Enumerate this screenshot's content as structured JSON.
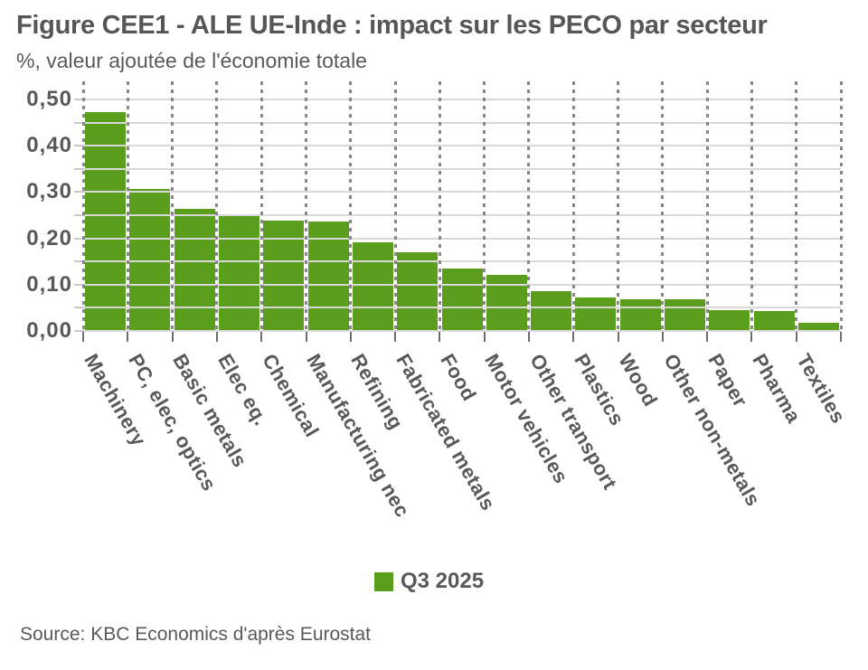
{
  "chart_data": {
    "type": "bar",
    "title": "Figure CEE1 - ALE UE-Inde : impact sur les PECO par secteur",
    "subtitle": "%, valeur ajoutée de l'économie totale",
    "source": "Source: KBC Economics d'après Eurostat",
    "legend": {
      "label": "Q3 2025",
      "position": "bottom-center",
      "marker": "square"
    },
    "series_name": "Q3 2025",
    "categories": [
      "Machinery",
      "PC, elec, optics",
      "Basic metals",
      "Elec eq.",
      "Chemical",
      "Manufacturing nec",
      "Refining",
      "Fabricated metals",
      "Food",
      "Motor vehicles",
      "Other transport",
      "Plastics",
      "Wood",
      "Other non-metals",
      "Paper",
      "Pharma",
      "Textiles"
    ],
    "values": [
      0.473,
      0.307,
      0.264,
      0.251,
      0.238,
      0.236,
      0.191,
      0.17,
      0.135,
      0.121,
      0.085,
      0.072,
      0.068,
      0.068,
      0.044,
      0.042,
      0.017
    ],
    "xlabel": "",
    "ylabel": "",
    "ylim": [
      0,
      0.5
    ],
    "ytick_labels": [
      "0,00",
      "0,10",
      "0,20",
      "0,30",
      "0,40",
      "0,50"
    ],
    "ytick_step": 0.1,
    "gridline_step": 0.05,
    "grid": "horizontal solid every 0.05, vertical dotted at category boundaries, drawn over bars",
    "colors": {
      "bar": "#5b9e1e",
      "grid": "#d9d9d9",
      "dotted": "#878787",
      "text": "#595959",
      "y_tick": "#c8c8c8",
      "x_tick": "#6e6e6e"
    }
  }
}
